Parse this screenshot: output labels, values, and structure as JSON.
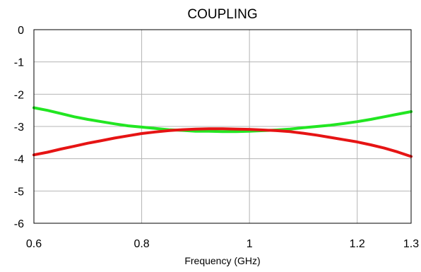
{
  "chart_data": {
    "type": "line",
    "title": "COUPLING",
    "xlabel": "Frequency (GHz)",
    "ylabel": "",
    "xlim": [
      0.6,
      1.3
    ],
    "ylim": [
      -6,
      0
    ],
    "x_ticks": [
      0.6,
      0.8,
      1,
      1.2,
      1.3
    ],
    "x_tick_labels": [
      "0.6",
      "0.8",
      "1",
      "1.2",
      "1.3"
    ],
    "y_ticks": [
      0,
      -1,
      -2,
      -3,
      -4,
      -5,
      -6
    ],
    "y_tick_labels": [
      "0",
      "-1",
      "-2",
      "-3",
      "-4",
      "-5",
      "-6"
    ],
    "grid": true,
    "legend": "none",
    "series": [
      {
        "color": "#22e622",
        "x": [
          0.6,
          0.625,
          0.65,
          0.675,
          0.7,
          0.725,
          0.75,
          0.775,
          0.8,
          0.825,
          0.85,
          0.875,
          0.9,
          0.925,
          0.95,
          0.975,
          1.0,
          1.025,
          1.05,
          1.075,
          1.1,
          1.125,
          1.15,
          1.175,
          1.2,
          1.225,
          1.25,
          1.275,
          1.3
        ],
        "values": [
          -2.42,
          -2.5,
          -2.6,
          -2.7,
          -2.78,
          -2.85,
          -2.92,
          -2.98,
          -3.02,
          -3.06,
          -3.1,
          -3.12,
          -3.15,
          -3.15,
          -3.16,
          -3.16,
          -3.15,
          -3.13,
          -3.11,
          -3.08,
          -3.04,
          -3.0,
          -2.96,
          -2.91,
          -2.85,
          -2.78,
          -2.7,
          -2.62,
          -2.54
        ]
      },
      {
        "color": "#e61414",
        "x": [
          0.6,
          0.625,
          0.65,
          0.675,
          0.7,
          0.725,
          0.75,
          0.775,
          0.8,
          0.825,
          0.85,
          0.875,
          0.9,
          0.925,
          0.95,
          0.975,
          1.0,
          1.025,
          1.05,
          1.075,
          1.1,
          1.125,
          1.15,
          1.175,
          1.2,
          1.225,
          1.25,
          1.275,
          1.3
        ],
        "values": [
          -3.88,
          -3.8,
          -3.7,
          -3.61,
          -3.52,
          -3.44,
          -3.36,
          -3.29,
          -3.22,
          -3.17,
          -3.13,
          -3.1,
          -3.08,
          -3.07,
          -3.07,
          -3.08,
          -3.09,
          -3.11,
          -3.13,
          -3.16,
          -3.21,
          -3.27,
          -3.34,
          -3.41,
          -3.48,
          -3.57,
          -3.67,
          -3.79,
          -3.93
        ]
      }
    ]
  }
}
